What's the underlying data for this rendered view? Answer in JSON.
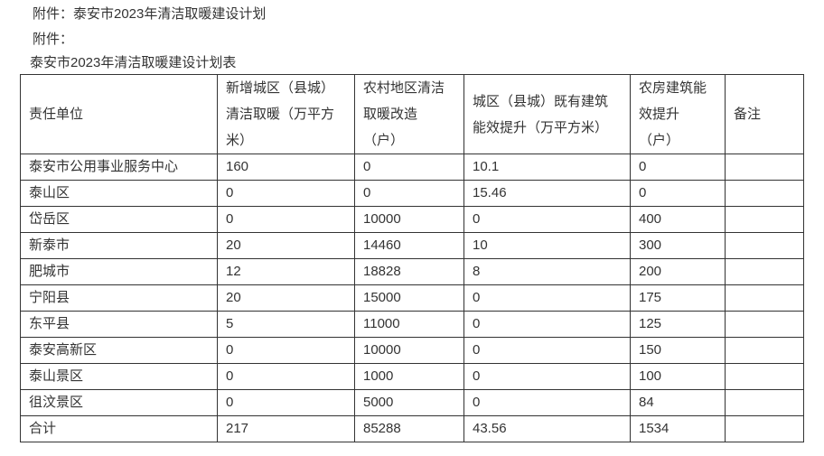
{
  "colors": {
    "text": "#333333",
    "border": "#333333",
    "background": "#ffffff"
  },
  "page": {
    "attachment_line_1": "附件：泰安市2023年清洁取暖建设计划",
    "attachment_line_2": "附件：",
    "table_title": "泰安市2023年清洁取暖建设计划表"
  },
  "table": {
    "columns": [
      {
        "label": "责任单位"
      },
      {
        "label": "新增城区（县城）\n清洁取暖（万平方\n米）"
      },
      {
        "label": "农村地区清洁\n取暖改造\n（户）"
      },
      {
        "label": "城区（县城）既有建筑\n能效提升（万平方米）"
      },
      {
        "label": "农房建筑能\n效提升\n（户）"
      },
      {
        "label": "备注"
      }
    ],
    "rows": [
      {
        "unit": "泰安市公用事业服务中心",
        "new_urban_heating": "160",
        "rural_retrofit": "0",
        "urban_existing_efficiency": "10.1",
        "rural_building_efficiency": "0",
        "remark": ""
      },
      {
        "unit": "泰山区",
        "new_urban_heating": "0",
        "rural_retrofit": "0",
        "urban_existing_efficiency": "15.46",
        "rural_building_efficiency": "0",
        "remark": ""
      },
      {
        "unit": "岱岳区",
        "new_urban_heating": "0",
        "rural_retrofit": "10000",
        "urban_existing_efficiency": "0",
        "rural_building_efficiency": "400",
        "remark": ""
      },
      {
        "unit": "新泰市",
        "new_urban_heating": "20",
        "rural_retrofit": "14460",
        "urban_existing_efficiency": "10",
        "rural_building_efficiency": "300",
        "remark": ""
      },
      {
        "unit": "肥城市",
        "new_urban_heating": "12",
        "rural_retrofit": "18828",
        "urban_existing_efficiency": "8",
        "rural_building_efficiency": "200",
        "remark": ""
      },
      {
        "unit": "宁阳县",
        "new_urban_heating": "20",
        "rural_retrofit": "15000",
        "urban_existing_efficiency": "0",
        "rural_building_efficiency": "175",
        "remark": ""
      },
      {
        "unit": "东平县",
        "new_urban_heating": "5",
        "rural_retrofit": "11000",
        "urban_existing_efficiency": "0",
        "rural_building_efficiency": "125",
        "remark": ""
      },
      {
        "unit": "泰安高新区",
        "new_urban_heating": "0",
        "rural_retrofit": "10000",
        "urban_existing_efficiency": "0",
        "rural_building_efficiency": "150",
        "remark": ""
      },
      {
        "unit": "泰山景区",
        "new_urban_heating": "0",
        "rural_retrofit": "1000",
        "urban_existing_efficiency": "0",
        "rural_building_efficiency": "100",
        "remark": ""
      },
      {
        "unit": "徂汶景区",
        "new_urban_heating": "0",
        "rural_retrofit": "5000",
        "urban_existing_efficiency": "0",
        "rural_building_efficiency": "84",
        "remark": ""
      },
      {
        "unit": "合计",
        "new_urban_heating": "217",
        "rural_retrofit": "85288",
        "urban_existing_efficiency": "43.56",
        "rural_building_efficiency": "1534",
        "remark": ""
      }
    ]
  }
}
